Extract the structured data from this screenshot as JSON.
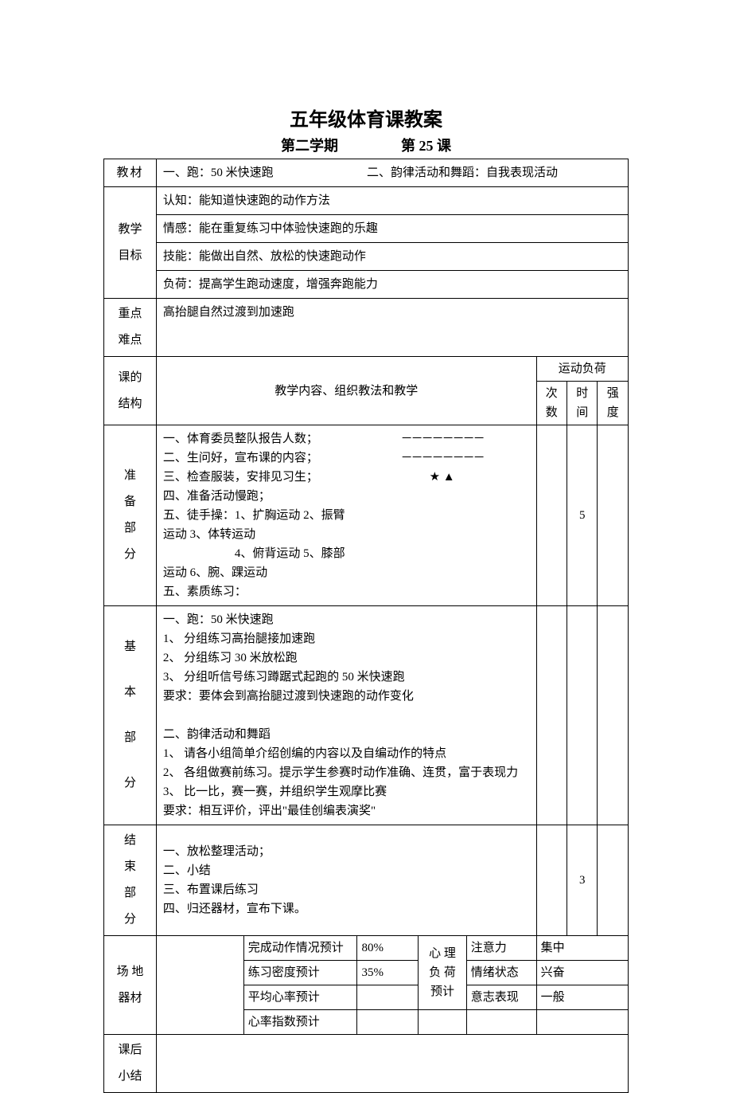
{
  "title": "五年级体育课教案",
  "subtitle_left": "第二学期",
  "subtitle_right": "第  25   课",
  "rows": {
    "jiaocai": {
      "label": "教材",
      "left": "一、跑：50 米快速跑",
      "right": "二、韵律活动和舞蹈：自我表现活动"
    },
    "mubiao": {
      "label": "教学目标",
      "l1": "认知：能知道快速跑的动作方法",
      "l2": "情感：能在重复练习中体验快速跑的乐趣",
      "l3": "技能：能做出自然、放松的快速跑动作",
      "l4": "负荷：提高学生跑动速度，增强奔跑能力"
    },
    "zhongdian": {
      "label": "重点难点",
      "content": "高抬腿自然过渡到加速跑"
    },
    "jiegou": {
      "label": "课的结构",
      "center_header": "教学内容、组织教法和教学",
      "load_header": "运动负荷",
      "load_ci": "次数",
      "load_shi": "时间",
      "load_qiang": "强度"
    },
    "zhunbei": {
      "label": "准备部分",
      "l1": "一、体育委员整队报告人数；",
      "l2": "二、生问好，宣布课的内容；",
      "l3": "三、检查服装，安排见习生；",
      "l4": "四、准备活动慢跑；",
      "l5": "五、徒手操：1、扩胸运动    2、振臂运动    3、体转运动",
      "l6": "　　　　　　4、俯背运动    5、膝部运动    6、腕、踝运动",
      "l7": "五、素质练习：",
      "sym1": "－－－－－－－－",
      "sym2": "－－－－－－－－",
      "sym3": "★   ▲",
      "time": "5"
    },
    "jiben": {
      "label": "基本部分",
      "p1_title": "一、跑：50 米快速跑",
      "p1_1": "1、 分组练习高抬腿接加速跑",
      "p1_2": "2、 分组练习 30 米放松跑",
      "p1_3": "3、 分组听信号练习蹲踞式起跑的 50 米快速跑",
      "p1_req": "要求：要体会到高抬腿过渡到快速跑的动作变化",
      "p2_title": "二、韵律活动和舞蹈",
      "p2_1": "1、 请各小组简单介绍创编的内容以及自编动作的特点",
      "p2_2": "2、 各组做赛前练习。提示学生参赛时动作准确、连贯，富于表现力",
      "p2_3": "3、 比一比，赛一赛，并组织学生观摩比赛",
      "p2_req": "要求：相互评价，评出\"最佳创编表演奖\""
    },
    "jieshu": {
      "label": "结束部分",
      "l1": "一、放松整理活动；",
      "l2": "二、小结",
      "l3": "三、布置课后练习",
      "l4": "四、归还器材，宣布下课。",
      "time": "3"
    },
    "changdi": {
      "label": "场 地器材",
      "r1_a": "完成动作情况预计",
      "r1_b": "80%",
      "r2_a": "练习密度预计",
      "r2_b": "35%",
      "r3_a": "平均心率预计",
      "r3_b": "",
      "r4_a": "心率指数预计",
      "r4_b": "",
      "xinli_label": "心 理负 荷预计",
      "xinli_1a": "注意力",
      "xinli_1b": "集中",
      "xinli_2a": "情绪状态",
      "xinli_2b": "兴奋",
      "xinli_3a": "意志表现",
      "xinli_3b": "一般"
    },
    "kehou": {
      "label": "课后小结"
    }
  }
}
